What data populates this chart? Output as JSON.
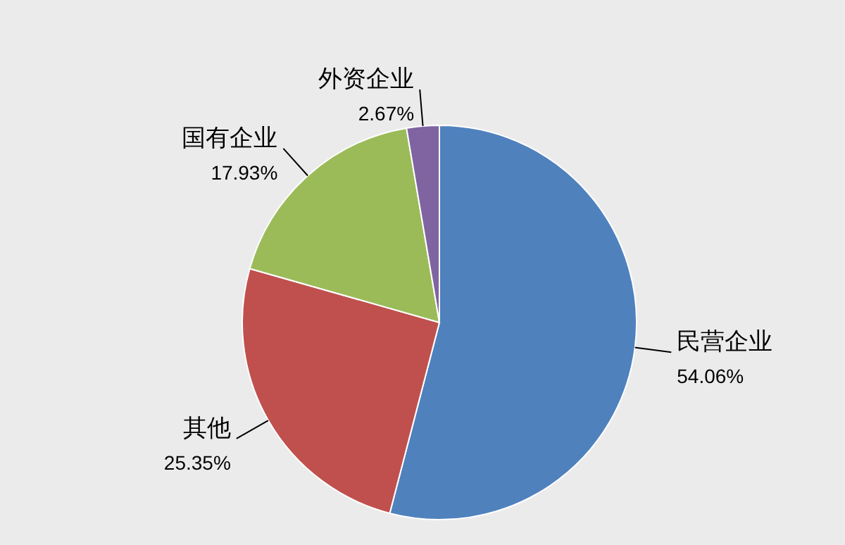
{
  "chart_data": {
    "type": "pie",
    "categories": [
      "民营企业",
      "其他",
      "国有企业",
      "外资企业"
    ],
    "values": [
      54.06,
      25.35,
      17.93,
      2.67
    ],
    "colors": [
      "#4f81bd",
      "#c0504d",
      "#9bbb59",
      "#8064a2"
    ],
    "value_labels": [
      "54.06%",
      "25.35%",
      "17.93%",
      "2.67%"
    ]
  }
}
